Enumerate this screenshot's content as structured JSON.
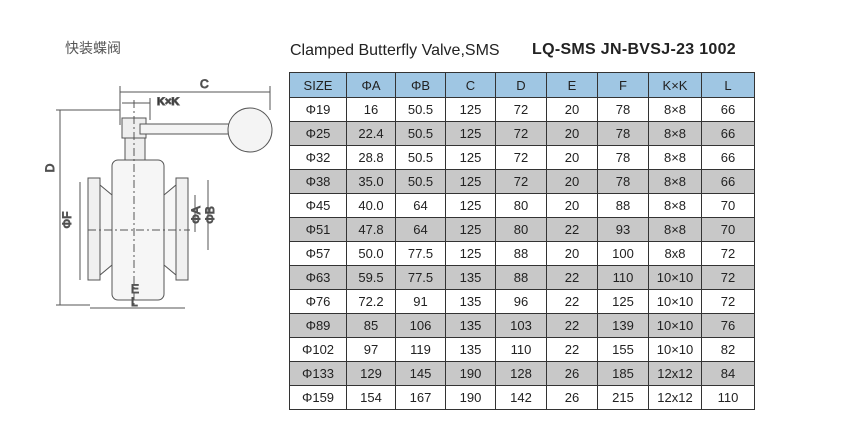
{
  "header": {
    "chinese_title": "快装蝶阀",
    "title": "Clamped Butterfly Valve,SMS",
    "code": "LQ-SMS JN-BVSJ-23 1002"
  },
  "drawing": {
    "labels": [
      "C",
      "K×K",
      "D",
      "ΦF",
      "ΦA",
      "ΦB",
      "E",
      "L"
    ]
  },
  "table": {
    "columns": [
      "SIZE",
      "ΦA",
      "ΦB",
      "C",
      "D",
      "E",
      "F",
      "K×K",
      "L"
    ],
    "rows": [
      [
        "Φ19",
        "16",
        "50.5",
        "125",
        "72",
        "20",
        "78",
        "8×8",
        "66"
      ],
      [
        "Φ25",
        "22.4",
        "50.5",
        "125",
        "72",
        "20",
        "78",
        "8×8",
        "66"
      ],
      [
        "Φ32",
        "28.8",
        "50.5",
        "125",
        "72",
        "20",
        "78",
        "8×8",
        "66"
      ],
      [
        "Φ38",
        "35.0",
        "50.5",
        "125",
        "72",
        "20",
        "78",
        "8×8",
        "66"
      ],
      [
        "Φ45",
        "40.0",
        "64",
        "125",
        "80",
        "20",
        "88",
        "8×8",
        "70"
      ],
      [
        "Φ51",
        "47.8",
        "64",
        "125",
        "80",
        "22",
        "93",
        "8×8",
        "70"
      ],
      [
        "Φ57",
        "50.0",
        "77.5",
        "125",
        "88",
        "20",
        "100",
        "8x8",
        "72"
      ],
      [
        "Φ63",
        "59.5",
        "77.5",
        "135",
        "88",
        "22",
        "110",
        "10×10",
        "72"
      ],
      [
        "Φ76",
        "72.2",
        "91",
        "135",
        "96",
        "22",
        "125",
        "10×10",
        "72"
      ],
      [
        "Φ89",
        "85",
        "106",
        "135",
        "103",
        "22",
        "139",
        "10×10",
        "76"
      ],
      [
        "Φ102",
        "97",
        "119",
        "135",
        "110",
        "22",
        "155",
        "10×10",
        "82"
      ],
      [
        "Φ133",
        "129",
        "145",
        "190",
        "128",
        "26",
        "185",
        "12x12",
        "84"
      ],
      [
        "Φ159",
        "154",
        "167",
        "190",
        "142",
        "26",
        "215",
        "12x12",
        "110"
      ]
    ]
  }
}
